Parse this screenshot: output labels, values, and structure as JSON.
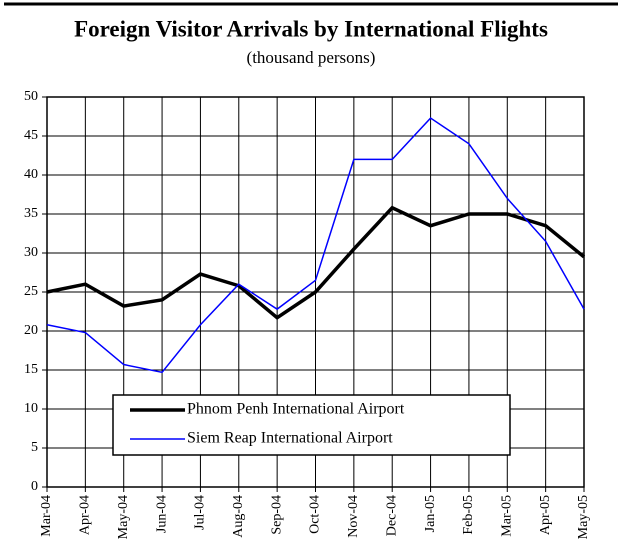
{
  "chart_data": {
    "type": "line",
    "title": "Foreign Visitor Arrivals by International Flights",
    "subtitle": "(thousand persons)",
    "categories": [
      "Mar-04",
      "Apr-04",
      "May-04",
      "Jun-04",
      "Jul-04",
      "Aug-04",
      "Sep-04",
      "Oct-04",
      "Nov-04",
      "Dec-04",
      "Jan-05",
      "Feb-05",
      "Mar-05",
      "Apr-05",
      "May-05"
    ],
    "series": [
      {
        "name": "Phnom Penh International Airport",
        "color": "#000000",
        "values": [
          25,
          26,
          23.2,
          24,
          27.3,
          25.8,
          21.7,
          25,
          30.5,
          35.8,
          33.5,
          35,
          35,
          33.5,
          29.5
        ]
      },
      {
        "name": "Siem Reap International Airport",
        "color": "#0000ff",
        "values": [
          20.8,
          19.8,
          15.7,
          14.7,
          20.8,
          26,
          22.8,
          26.5,
          42,
          42,
          47.3,
          44,
          37,
          31.5,
          22.8
        ]
      }
    ],
    "ylim": [
      0,
      50
    ],
    "yticks": [
      0,
      5,
      10,
      15,
      20,
      25,
      30,
      35,
      40,
      45,
      50
    ],
    "grid": true
  }
}
